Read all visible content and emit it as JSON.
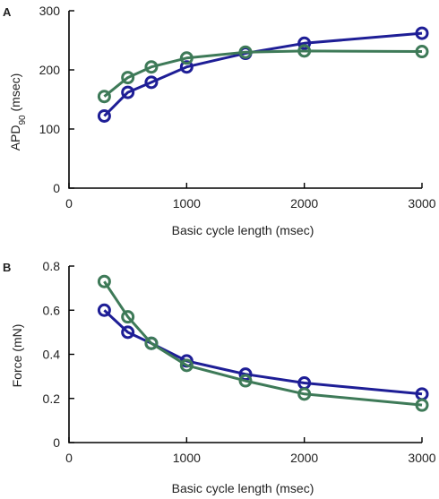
{
  "chart_data": [
    {
      "type": "line",
      "panel": "A",
      "xlabel": "Basic cycle length (msec)",
      "ylabel_main": "APD",
      "ylabel_sub": "90",
      "ylabel_unit": " (msec)",
      "xlim": [
        0,
        3000
      ],
      "ylim": [
        0,
        300
      ],
      "xticks": [
        0,
        1000,
        2000,
        3000
      ],
      "yticks": [
        0,
        100,
        200,
        300
      ],
      "grid": false,
      "colors": [
        "#1e1e96",
        "#3e7a58"
      ],
      "series": [
        {
          "x": [
            300,
            500,
            700,
            1000,
            1500,
            2000,
            3000
          ],
          "y": [
            122,
            162,
            179,
            205,
            228,
            245,
            262
          ]
        },
        {
          "x": [
            300,
            500,
            700,
            1000,
            1500,
            2000,
            3000
          ],
          "y": [
            155,
            187,
            205,
            220,
            230,
            232,
            231
          ]
        }
      ]
    },
    {
      "type": "line",
      "panel": "B",
      "xlabel": "Basic cycle length (msec)",
      "ylabel": "Force (mN)",
      "xlim": [
        0,
        3000
      ],
      "ylim": [
        0,
        0.8
      ],
      "xticks": [
        0,
        1000,
        2000,
        3000
      ],
      "yticks": [
        0,
        0.2,
        0.4,
        0.6,
        0.8
      ],
      "grid": false,
      "colors": [
        "#1e1e96",
        "#3e7a58"
      ],
      "series": [
        {
          "x": [
            300,
            500,
            700,
            1000,
            1500,
            2000,
            3000
          ],
          "y": [
            0.6,
            0.5,
            0.45,
            0.37,
            0.31,
            0.27,
            0.22
          ]
        },
        {
          "x": [
            300,
            500,
            700,
            1000,
            1500,
            2000,
            3000
          ],
          "y": [
            0.73,
            0.57,
            0.45,
            0.35,
            0.28,
            0.22,
            0.17
          ]
        }
      ]
    }
  ]
}
